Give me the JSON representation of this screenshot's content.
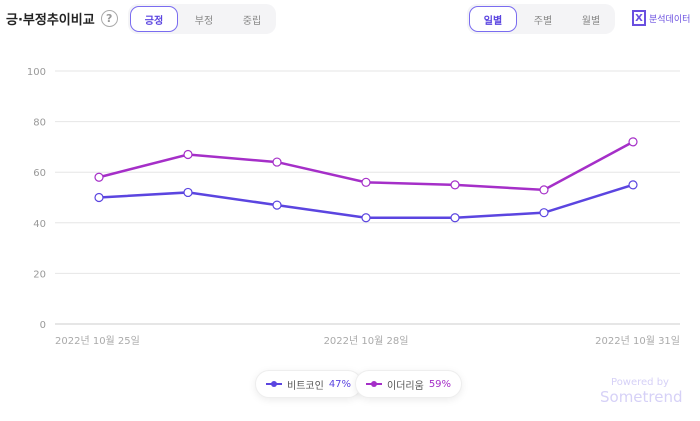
{
  "header": {
    "title": "긍·부정추이비교",
    "help_icon": "?",
    "sentiment_tabs": [
      "긍정",
      "부정",
      "중립"
    ],
    "active_sentiment": "긍정",
    "period_tabs": [
      "일별",
      "주별",
      "월별"
    ],
    "active_period": "일별",
    "export_label": "분석데이터",
    "export_icon": "X"
  },
  "chart_data": {
    "type": "line",
    "x": [
      "2022년 10월 25일",
      "2022년 10월 26일",
      "2022년 10월 27일",
      "2022년 10월 28일",
      "2022년 10월 29일",
      "2022년 10월 30일",
      "2022년 10월 31일"
    ],
    "x_tick_labels": [
      "2022년 10월 25일",
      "2022년 10월 28일",
      "2022년 10월 31일"
    ],
    "ylim": [
      0,
      100
    ],
    "yticks": [
      "0",
      "20",
      "40",
      "60",
      "80",
      "100"
    ],
    "grid": true,
    "series": [
      {
        "name": "비트코인",
        "color": "#5b45e0",
        "values": [
          50,
          52,
          47,
          42,
          42,
          44,
          55
        ]
      },
      {
        "name": "이더리움",
        "color": "#a52fc8",
        "values": [
          58,
          67,
          64,
          56,
          55,
          53,
          72
        ]
      }
    ]
  },
  "legend": [
    {
      "name": "비트코인",
      "pct": "47%",
      "color": "#5b45e0"
    },
    {
      "name": "이더리움",
      "pct": "59%",
      "color": "#a52fc8"
    }
  ],
  "branding": {
    "powered": "Powered by",
    "brand": "Sometrend"
  }
}
